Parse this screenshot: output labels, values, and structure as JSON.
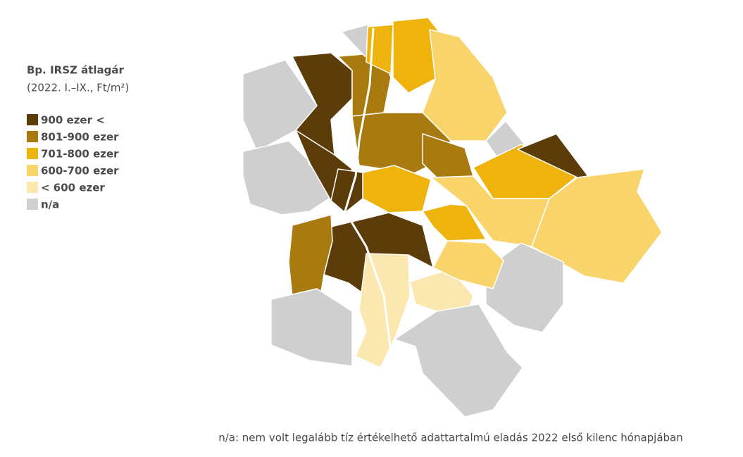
{
  "legend": {
    "title": "Bp. IRSZ átlagár",
    "subtitle": "(2022. I.–IX., Ft/m²)",
    "items": [
      {
        "label": "900 ezer <",
        "color": "#5c3d0a"
      },
      {
        "label": "801-900 ezer",
        "color": "#a87a10"
      },
      {
        "label": "701-800 ezer",
        "color": "#efb30e"
      },
      {
        "label": "600-700 ezer",
        "color": "#f8d46a"
      },
      {
        "label": "< 600 ezer",
        "color": "#fbe8b0"
      },
      {
        "label": "n/a",
        "color": "#cfcfcf"
      }
    ]
  },
  "footnote": "n/a: nem volt legalább tíz értékelhető adattartalmú eladás 2022 első kilenc hónapjában"
}
